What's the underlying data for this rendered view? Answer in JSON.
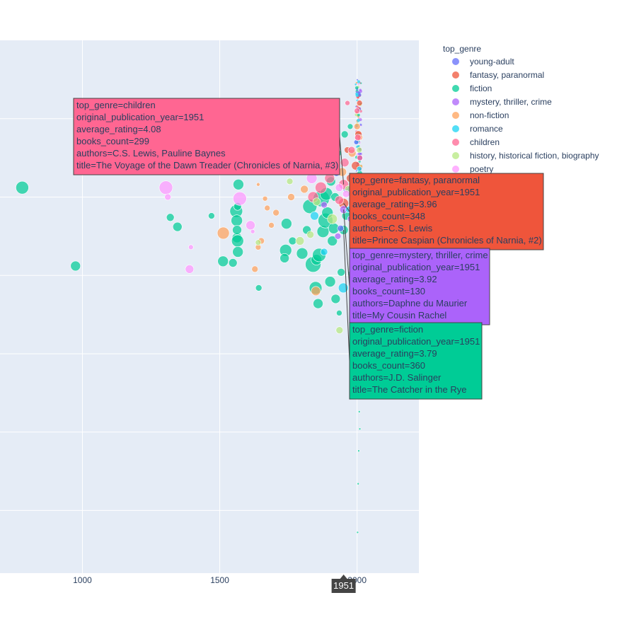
{
  "chart_data": {
    "type": "scatter",
    "xlabel": "",
    "ylabel": "",
    "xlim": [
      700,
      2225
    ],
    "ylim": [
      1.6,
      5.0
    ],
    "x_ticks": [
      1000,
      1500,
      2000
    ],
    "x_tick_labels": [
      "1000",
      "1500",
      "2000"
    ],
    "y_ticks": [
      2.0,
      2.5,
      3.0,
      3.5,
      4.0,
      4.5
    ],
    "grid": true,
    "background": "#E5ECF6",
    "legend": {
      "title": "top_genre",
      "placement": "right",
      "entries": [
        {
          "name": "young-adult",
          "color": "#636EFA"
        },
        {
          "name": "fantasy, paranormal",
          "color": "#EF553B"
        },
        {
          "name": "fiction",
          "color": "#00CC96"
        },
        {
          "name": "mystery, thriller, crime",
          "color": "#AB63FA"
        },
        {
          "name": "non-fiction",
          "color": "#FFA15A"
        },
        {
          "name": "romance",
          "color": "#19D3F3"
        },
        {
          "name": "children",
          "color": "#FF6692"
        },
        {
          "name": "history, historical fiction, biography",
          "color": "#B6E880"
        },
        {
          "name": "poetry",
          "color": "#FF97FF"
        }
      ]
    },
    "series": [
      {
        "name": "fiction",
        "color": "#00CC96",
        "points": [
          [
            781,
            4.06,
            18
          ],
          [
            975,
            3.56,
            14
          ],
          [
            1320,
            3.87,
            11
          ],
          [
            1346,
            3.81,
            13
          ],
          [
            1470,
            3.88,
            9
          ],
          [
            1512,
            3.59,
            15
          ],
          [
            1548,
            3.58,
            12
          ],
          [
            1560,
            3.91,
            18
          ],
          [
            1563,
            3.74,
            14
          ],
          [
            1565,
            3.72,
            17
          ],
          [
            1566,
            3.65,
            15
          ],
          [
            1562,
            3.85,
            16
          ],
          [
            1565,
            3.94,
            11
          ],
          [
            1563,
            3.79,
            13
          ],
          [
            1568,
            4.08,
            15
          ],
          [
            1642,
            3.42,
            9
          ],
          [
            1740,
            3.66,
            17
          ],
          [
            1736,
            3.61,
            13
          ],
          [
            1743,
            3.83,
            15
          ],
          [
            1765,
            3.72,
            11
          ],
          [
            1800,
            3.64,
            16
          ],
          [
            1817,
            3.79,
            12
          ],
          [
            1828,
            3.94,
            20
          ],
          [
            1840,
            3.57,
            22
          ],
          [
            1849,
            3.42,
            18
          ],
          [
            1852,
            3.6,
            15
          ],
          [
            1858,
            3.32,
            14
          ],
          [
            1862,
            3.63,
            19
          ],
          [
            1870,
            3.99,
            23
          ],
          [
            1876,
            3.78,
            17
          ],
          [
            1885,
            3.85,
            21
          ],
          [
            1892,
            3.9,
            16
          ],
          [
            1902,
            3.46,
            15
          ],
          [
            1910,
            3.72,
            14
          ],
          [
            1922,
            3.35,
            13
          ],
          [
            1935,
            3.26,
            8
          ],
          [
            1951,
            3.79,
            13
          ],
          [
            1888,
            4.02,
            18
          ],
          [
            1895,
            4.22,
            14
          ],
          [
            1930,
            4.28,
            10
          ],
          [
            1942,
            3.52,
            11
          ],
          [
            1960,
            3.88,
            12
          ],
          [
            1978,
            3.51,
            9
          ],
          [
            1990,
            3.92,
            12
          ],
          [
            2000,
            3.7,
            10
          ],
          [
            2005,
            3.45,
            6
          ],
          [
            2010,
            4.15,
            8
          ],
          [
            2012,
            3.95,
            7
          ],
          [
            2002,
            3.12,
            4
          ],
          [
            2004,
            3.0,
            4
          ],
          [
            2007,
            2.78,
            3
          ],
          [
            2008,
            2.63,
            3
          ],
          [
            2010,
            2.52,
            3
          ],
          [
            2006,
            2.38,
            3
          ],
          [
            2004,
            2.17,
            3
          ],
          [
            2002,
            1.86,
            3
          ],
          [
            1998,
            2.9,
            4
          ],
          [
            2012,
            3.25,
            4
          ],
          [
            1955,
            4.4,
            10
          ],
          [
            1975,
            4.45,
            8
          ],
          [
            1920,
            4.0,
            12
          ],
          [
            1915,
            3.8,
            15
          ],
          [
            1905,
            4.1,
            13
          ]
        ]
      },
      {
        "name": "young-adult",
        "color": "#636EFA",
        "points": [
          [
            1940,
            3.8,
            9
          ],
          [
            1962,
            4.05,
            10
          ],
          [
            1985,
            3.95,
            8
          ],
          [
            2003,
            4.1,
            10
          ],
          [
            2008,
            3.85,
            9
          ],
          [
            2011,
            4.25,
            8
          ],
          [
            1997,
            4.35,
            7
          ],
          [
            1925,
            4.15,
            8
          ]
        ]
      },
      {
        "name": "fantasy, paranormal",
        "color": "#EF553B",
        "points": [
          [
            1951,
            3.96,
            14
          ],
          [
            1975,
            4.12,
            11
          ],
          [
            1995,
            4.2,
            12
          ],
          [
            2005,
            4.4,
            10
          ],
          [
            2010,
            4.05,
            9
          ],
          [
            1965,
            4.3,
            9
          ],
          [
            2009,
            4.6,
            8
          ],
          [
            1985,
            3.75,
            10
          ]
        ]
      },
      {
        "name": "mystery, thriller, crime",
        "color": "#AB63FA",
        "points": [
          [
            1951,
            3.92,
            11
          ],
          [
            1880,
            3.95,
            9
          ],
          [
            1930,
            3.75,
            9
          ],
          [
            1978,
            3.86,
            10
          ],
          [
            2001,
            3.98,
            8
          ],
          [
            2009,
            3.7,
            7
          ],
          [
            1990,
            4.02,
            9
          ]
        ]
      },
      {
        "name": "non-fiction",
        "color": "#FFA15A",
        "points": [
          [
            1420,
            4.18,
            11
          ],
          [
            1513,
            3.77,
            17
          ],
          [
            1628,
            3.54,
            9
          ],
          [
            1640,
            3.68,
            8
          ],
          [
            1651,
            3.72,
            9
          ],
          [
            1665,
            3.99,
            7
          ],
          [
            1673,
            3.93,
            8
          ],
          [
            1688,
            3.82,
            8
          ],
          [
            1705,
            3.9,
            9
          ],
          [
            1760,
            4.0,
            10
          ],
          [
            1808,
            4.05,
            11
          ],
          [
            1850,
            3.4,
            13
          ],
          [
            1905,
            4.2,
            14
          ],
          [
            1946,
            4.16,
            12
          ],
          [
            1982,
            4.28,
            11
          ],
          [
            2000,
            4.45,
            9
          ],
          [
            2010,
            4.38,
            8
          ],
          [
            1640,
            4.08,
            5
          ]
        ]
      },
      {
        "name": "romance",
        "color": "#19D3F3",
        "points": [
          [
            1845,
            3.88,
            12
          ],
          [
            1950,
            3.42,
            14
          ],
          [
            1880,
            3.65,
            10
          ],
          [
            1970,
            3.92,
            9
          ],
          [
            2003,
            4.02,
            8
          ],
          [
            2008,
            4.18,
            7
          ]
        ]
      },
      {
        "name": "children",
        "color": "#FF6692",
        "points": [
          [
            1951,
            4.08,
            14
          ],
          [
            1840,
            4.0,
            15
          ],
          [
            1868,
            4.06,
            16
          ],
          [
            1900,
            4.12,
            14
          ],
          [
            1955,
            4.22,
            12
          ],
          [
            1980,
            4.3,
            10
          ],
          [
            2000,
            4.55,
            8
          ],
          [
            1922,
            4.34,
            10
          ],
          [
            1935,
            3.98,
            12
          ],
          [
            2003,
            4.38,
            9
          ],
          [
            1965,
            4.6,
            7
          ],
          [
            2010,
            4.25,
            8
          ]
        ]
      },
      {
        "name": "history, historical fiction, biography",
        "color": "#B6E880",
        "points": [
          [
            1554,
            4.25,
            7
          ],
          [
            1640,
            3.71,
            8
          ],
          [
            1755,
            4.1,
            9
          ],
          [
            1792,
            3.72,
            12
          ],
          [
            1853,
            3.97,
            11
          ],
          [
            1936,
            3.15,
            10
          ],
          [
            1910,
            3.86,
            14
          ],
          [
            1968,
            4.05,
            10
          ],
          [
            2000,
            3.95,
            9
          ],
          [
            1830,
            3.76,
            10
          ],
          [
            2008,
            4.3,
            8
          ]
        ]
      },
      {
        "name": "poetry",
        "color": "#FF97FF",
        "points": [
          [
            1120,
            4.18,
            14
          ],
          [
            1304,
            4.06,
            19
          ],
          [
            1311,
            4.0,
            9
          ],
          [
            1395,
            3.68,
            7
          ],
          [
            1390,
            3.54,
            12
          ],
          [
            1577,
            4.23,
            12
          ],
          [
            1573,
            3.99,
            19
          ],
          [
            1612,
            3.82,
            13
          ],
          [
            1835,
            4.12,
            15
          ],
          [
            1905,
            4.25,
            13
          ],
          [
            1935,
            4.06,
            11
          ],
          [
            1960,
            4.02,
            10
          ],
          [
            1860,
            4.28,
            10
          ],
          [
            1620,
            3.78,
            6
          ]
        ]
      }
    ],
    "hover_labels": [
      {
        "genre": "children",
        "x": 1951,
        "y": 4.08,
        "color": "#FF6692",
        "lines": [
          "top_genre=children",
          "original_publication_year=1951",
          "average_rating=4.08",
          "books_count=299",
          "authors=C.S. Lewis, Pauline Baynes",
          "title=The Voyage of the Dawn Treader (Chronicles of Narnia, #3)"
        ]
      },
      {
        "genre": "fantasy, paranormal",
        "x": 1951,
        "y": 3.96,
        "color": "#EF553B",
        "lines": [
          "top_genre=fantasy, paranormal",
          "original_publication_year=1951",
          "average_rating=3.96",
          "books_count=348",
          "authors=C.S. Lewis",
          "title=Prince Caspian (Chronicles of Narnia, #2)"
        ]
      },
      {
        "genre": "mystery, thriller, crime",
        "x": 1951,
        "y": 3.92,
        "color": "#AB63FA",
        "lines": [
          "top_genre=mystery, thriller, crime",
          "original_publication_year=1951",
          "average_rating=3.92",
          "books_count=130",
          "authors=Daphne du Maurier",
          "title=My Cousin Rachel"
        ]
      },
      {
        "genre": "fiction",
        "x": 1951,
        "y": 3.79,
        "color": "#00CC96",
        "lines": [
          "top_genre=fiction",
          "original_publication_year=1951",
          "average_rating=3.79",
          "books_count=360",
          "authors=J.D. Salinger",
          "title=The Catcher in the Rye"
        ]
      }
    ],
    "spike_label": "1951"
  }
}
